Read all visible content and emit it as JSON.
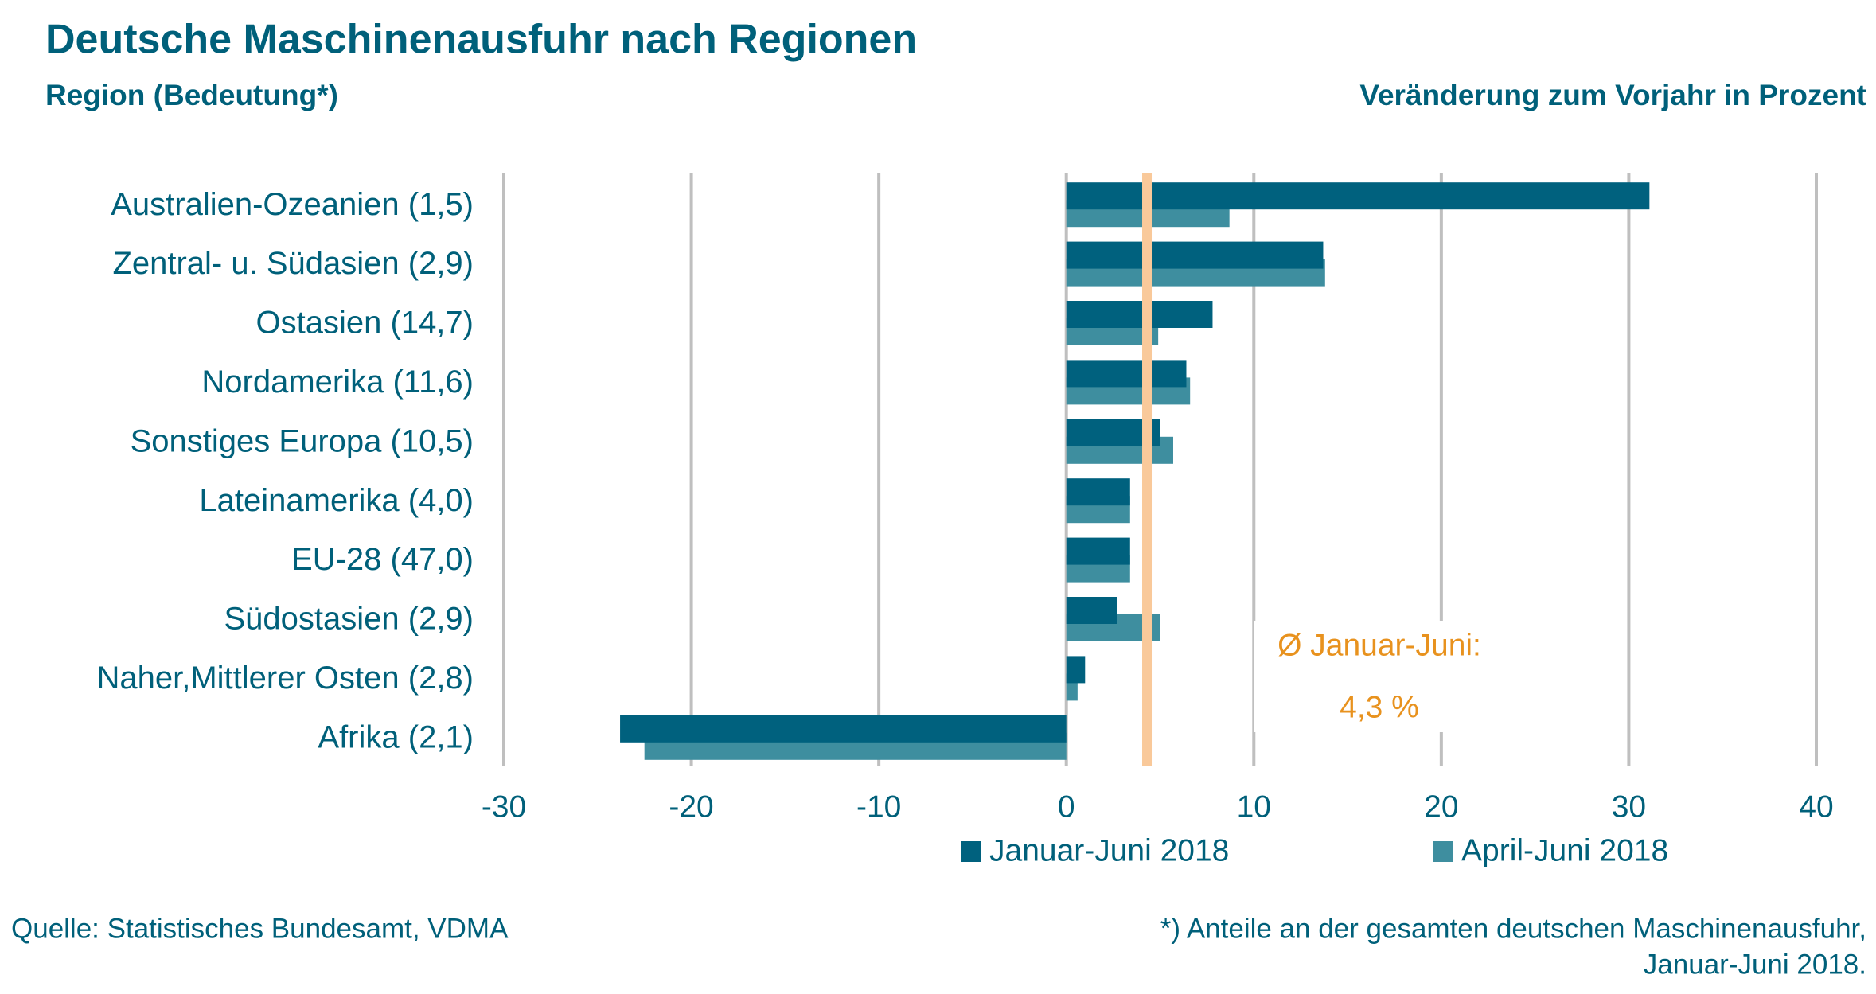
{
  "chart_data": {
    "type": "barh",
    "title": "Deutsche Maschinenausfuhr nach Regionen",
    "y_label": "Region (Bedeutung*)",
    "x_label": "Veränderung zum Vorjahr in Prozent",
    "categories": [
      "Australien-Ozeanien (1,5)",
      "Zentral- u. Südasien (2,9)",
      "Ostasien (14,7)",
      "Nordamerika (11,6)",
      "Sonstiges Europa (10,5)",
      "Lateinamerika (4,0)",
      "EU-28 (47,0)",
      "Südostasien (2,9)",
      "Naher,Mittlerer Osten (2,8)",
      "Afrika (2,1)"
    ],
    "series": [
      {
        "name": "Januar-Juni 2018",
        "color": "#00617e",
        "values": [
          31.1,
          13.7,
          7.8,
          6.4,
          5.0,
          3.4,
          3.4,
          2.7,
          1.0,
          -23.8
        ]
      },
      {
        "name": "April-Juni 2018",
        "color": "#3e8e9f",
        "values": [
          8.7,
          13.8,
          4.9,
          6.6,
          5.7,
          3.4,
          3.4,
          5.0,
          0.6,
          -22.5
        ]
      }
    ],
    "xlim": [
      -30,
      40
    ],
    "xticks": [
      -30,
      -20,
      -10,
      0,
      10,
      20,
      30,
      40
    ],
    "grid": true,
    "reference_line": {
      "value": 4.3,
      "color": "#f9c99a",
      "label": "Ø Januar-Juni:",
      "value_label": "4,3 %"
    },
    "legend": "bottom",
    "source": "Quelle: Statistisches Bundesamt, VDMA",
    "footnote": [
      "*) Anteile an der gesamten deutschen Maschinenausfuhr,",
      "Januar-Juni 2018."
    ]
  }
}
